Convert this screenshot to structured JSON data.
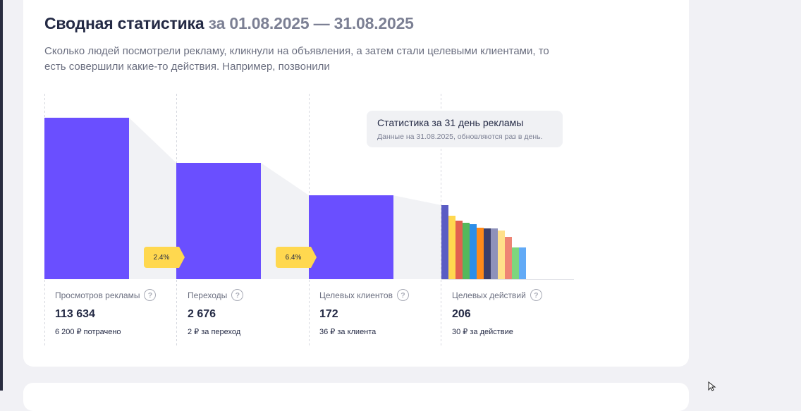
{
  "header": {
    "title": "Сводная статистика",
    "period": "за 01.08.2025 — 31.08.2025",
    "description": "Сколько людей посмотрели рекламу, кликнули на объявления, а затем стали целевыми клиентами, то есть совершили какие-то действия. Например, позвонили"
  },
  "tooltip": {
    "title": "Статистика за 31 день рекламы",
    "note": "Данные на 31.08.2025, обновляются раз в день."
  },
  "funnel": {
    "conversions": [
      "2.4%",
      "6.4%"
    ],
    "metrics": [
      {
        "label": "Просмотров рекламы",
        "value": "113 634",
        "sub": "6 200 ₽ потрачено"
      },
      {
        "label": "Переходы",
        "value": "2 676",
        "sub": "2 ₽ за переход"
      },
      {
        "label": "Целевых клиентов",
        "value": "172",
        "sub": "36 ₽ за клиента"
      },
      {
        "label": "Целевых действий",
        "value": "206",
        "sub": "30 ₽ за действие"
      }
    ],
    "bar_color": "#6a4fff",
    "action_colors": [
      "#5a5cc4",
      "#ffd84f",
      "#e26050",
      "#54b85c",
      "#2c8ee8",
      "#ff8a1a",
      "#3b3f6b",
      "#8e91ba",
      "#ffe08a",
      "#ee8474",
      "#7ed67e",
      "#62aaf6"
    ]
  },
  "icons": {
    "help": "question-circle-icon",
    "cursor": "mouse-pointer-icon"
  },
  "glyphs": {
    "help": "?"
  }
}
